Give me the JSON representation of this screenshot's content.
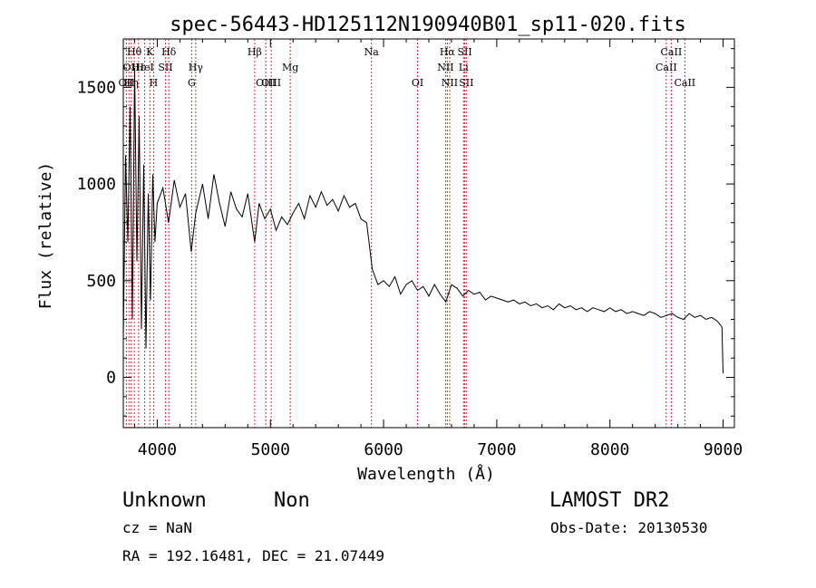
{
  "chart_data": {
    "type": "line",
    "title": "spec-56443-HD125112N190940B01_sp11-020.fits",
    "xlabel": "Wavelength (Å)",
    "ylabel": "Flux (relative)",
    "xlim": [
      3700,
      9100
    ],
    "ylim": [
      -260,
      1750
    ],
    "x_ticks": [
      4000,
      5000,
      6000,
      7000,
      8000,
      9000
    ],
    "y_ticks": [
      0,
      500,
      1000,
      1500
    ],
    "grid": false,
    "line_color": "#000000",
    "marker_color": "#cc3333",
    "series": [
      {
        "x": [
          3700,
          3720,
          3740,
          3760,
          3780,
          3800,
          3820,
          3840,
          3860,
          3880,
          3900,
          3920,
          3940,
          3960,
          3980,
          4000,
          4050,
          4100,
          4150,
          4200,
          4250,
          4300,
          4340,
          4400,
          4450,
          4500,
          4550,
          4600,
          4650,
          4700,
          4750,
          4800,
          4861,
          4900,
          4950,
          5000,
          5050,
          5100,
          5150,
          5200,
          5250,
          5300,
          5350,
          5400,
          5450,
          5500,
          5550,
          5600,
          5650,
          5700,
          5750,
          5800,
          5850,
          5900,
          5950,
          6000,
          6050,
          6100,
          6150,
          6200,
          6250,
          6300,
          6350,
          6400,
          6450,
          6500,
          6550,
          6600,
          6650,
          6700,
          6750,
          6800,
          6850,
          6900,
          6950,
          7000,
          7050,
          7100,
          7150,
          7200,
          7250,
          7300,
          7350,
          7400,
          7450,
          7500,
          7550,
          7600,
          7650,
          7700,
          7750,
          7800,
          7850,
          7900,
          7950,
          8000,
          8050,
          8100,
          8150,
          8200,
          8250,
          8300,
          8350,
          8400,
          8450,
          8500,
          8550,
          8600,
          8650,
          8700,
          8750,
          8800,
          8850,
          8900,
          8950,
          8990,
          9000
        ],
        "y": [
          200,
          1150,
          700,
          1400,
          300,
          1600,
          600,
          1350,
          250,
          1100,
          150,
          950,
          400,
          1050,
          700,
          900,
          980,
          800,
          1020,
          880,
          950,
          650,
          850,
          1000,
          820,
          1050,
          900,
          780,
          960,
          870,
          830,
          950,
          700,
          900,
          820,
          870,
          760,
          830,
          790,
          850,
          900,
          820,
          940,
          880,
          960,
          890,
          920,
          860,
          940,
          880,
          900,
          820,
          800,
          560,
          480,
          500,
          470,
          520,
          430,
          480,
          500,
          450,
          470,
          420,
          480,
          430,
          390,
          480,
          460,
          420,
          450,
          430,
          440,
          400,
          420,
          410,
          400,
          390,
          400,
          380,
          390,
          370,
          380,
          360,
          370,
          350,
          380,
          360,
          370,
          350,
          360,
          340,
          360,
          350,
          340,
          360,
          340,
          350,
          330,
          340,
          330,
          320,
          340,
          330,
          310,
          320,
          330,
          310,
          300,
          330,
          310,
          320,
          300,
          310,
          290,
          260,
          20
        ]
      }
    ],
    "line_markers": [
      {
        "x": 3727,
        "label": "OII",
        "row": 3
      },
      {
        "x": 3750,
        "label": "OI",
        "row": 2
      },
      {
        "x": 3770,
        "label": "Hη",
        "row": 3
      },
      {
        "x": 3797,
        "label": "Hθ",
        "row": 1
      },
      {
        "x": 3835,
        "label": "Hε",
        "row": 2
      },
      {
        "x": 3889,
        "label": "HeI",
        "row": 2
      },
      {
        "x": 3934,
        "label": "K",
        "row": 1
      },
      {
        "x": 3968,
        "label": "H",
        "row": 3
      },
      {
        "x": 4072,
        "label": "SII",
        "row": 2
      },
      {
        "x": 4102,
        "label": "Hδ",
        "row": 1
      },
      {
        "x": 4304,
        "label": "G",
        "row": 3
      },
      {
        "x": 4340,
        "label": "Hγ",
        "row": 2
      },
      {
        "x": 4861,
        "label": "Hβ",
        "row": 1
      },
      {
        "x": 4959,
        "label": "OIII",
        "row": 3
      },
      {
        "x": 5007,
        "label": "OIII",
        "row": 3
      },
      {
        "x": 5175,
        "label": "Mg",
        "row": 2
      },
      {
        "x": 5893,
        "label": "Na",
        "row": 1
      },
      {
        "x": 6300,
        "label": "OI",
        "row": 3
      },
      {
        "x": 6548,
        "label": "NII",
        "row": 2
      },
      {
        "x": 6563,
        "label": "Hα",
        "row": 1
      },
      {
        "x": 6584,
        "label": "NII",
        "row": 3
      },
      {
        "x": 6717,
        "label": "SII",
        "row": 1
      },
      {
        "x": 6707,
        "label": "Li",
        "row": 2
      },
      {
        "x": 6731,
        "label": "SII",
        "row": 3
      },
      {
        "x": 8498,
        "label": "CaII",
        "row": 2
      },
      {
        "x": 8542,
        "label": "CaII",
        "row": 1
      },
      {
        "x": 8662,
        "label": "CaII",
        "row": 3
      }
    ]
  },
  "footer": {
    "class_label": "Unknown",
    "subclass_label": "Non",
    "survey": "LAMOST DR2",
    "cz": "cz = NaN",
    "obs_date": "Obs-Date: 20130530",
    "coords": "RA = 192.16481, DEC =  21.07449"
  }
}
